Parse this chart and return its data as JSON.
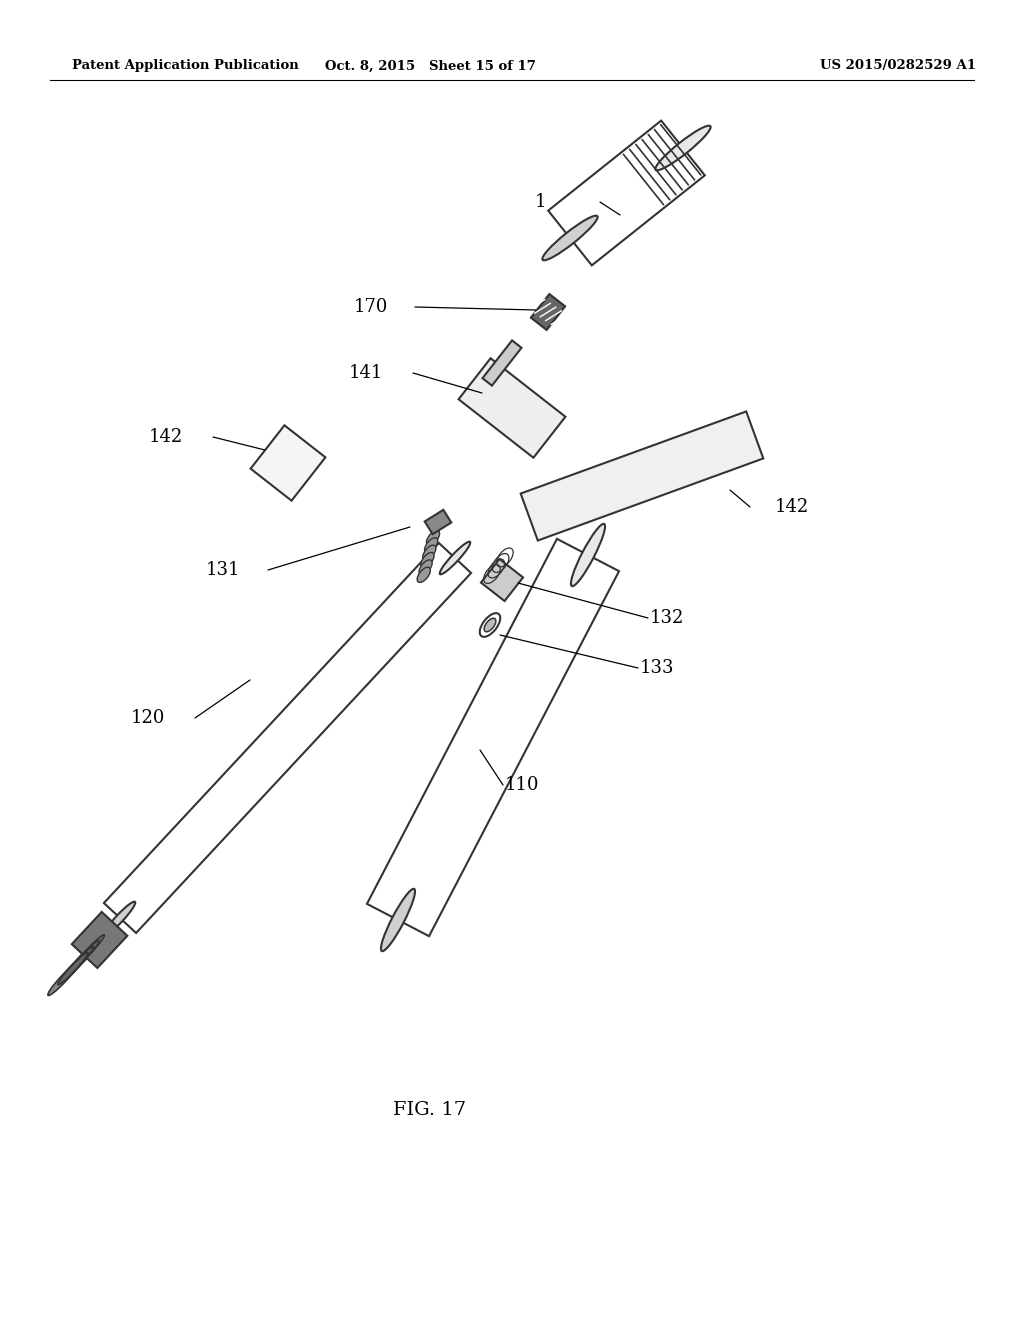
{
  "background_color": "#ffffff",
  "header_left": "Patent Application Publication",
  "header_center": "Oct. 8, 2015   Sheet 15 of 17",
  "header_right": "US 2015/0282529 A1",
  "figure_label": "FIG. 17",
  "dark": "#333333",
  "mid": "#666666",
  "light": "#aaaaaa",
  "lw": 1.5
}
